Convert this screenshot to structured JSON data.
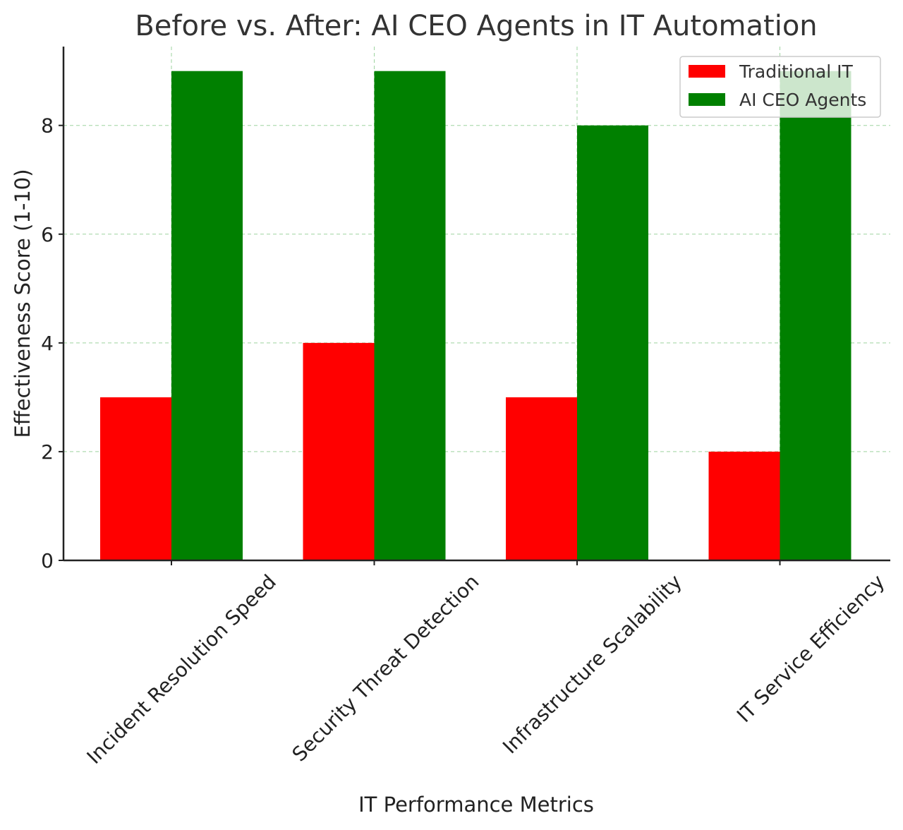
{
  "chart_data": {
    "type": "bar",
    "title": "Before vs. After: AI CEO Agents in IT Automation",
    "xlabel": "IT Performance Metrics",
    "ylabel": "Effectiveness Score (1-10)",
    "categories": [
      "Incident Resolution Speed",
      "Security Threat Detection",
      "Infrastructure Scalability",
      "IT Service Efficiency"
    ],
    "series": [
      {
        "name": "Traditional IT",
        "color": "#ff0000",
        "values": [
          3,
          4,
          3,
          2
        ]
      },
      {
        "name": "AI CEO Agents",
        "color": "#008000",
        "values": [
          9,
          9,
          8,
          9
        ]
      }
    ],
    "ylim": [
      0,
      9.45
    ],
    "yticks": [
      0,
      2,
      4,
      6,
      8
    ],
    "grid": true,
    "legend_position": "top-right"
  }
}
